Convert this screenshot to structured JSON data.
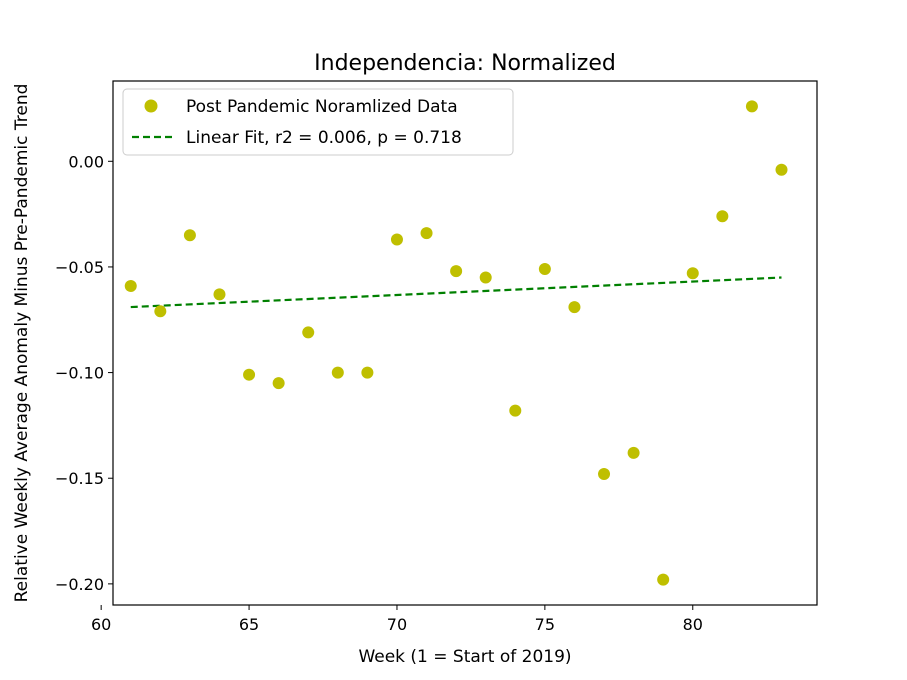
{
  "chart_data": {
    "type": "scatter",
    "title": "Independencia: Normalized",
    "xlabel": "Week (1 = Start of 2019)",
    "ylabel": "Relative Weekly Average Anomaly Minus Pre-Pandemic Trend",
    "xlim": [
      60.4,
      84.2
    ],
    "ylim": [
      -0.21,
      0.038
    ],
    "xticks": [
      60,
      65,
      70,
      75,
      80
    ],
    "xtick_labels": [
      "60",
      "65",
      "70",
      "75",
      "80"
    ],
    "yticks": [
      0.0,
      -0.05,
      -0.1,
      -0.15,
      -0.2
    ],
    "ytick_labels": [
      "0.00",
      "−0.05",
      "−0.10",
      "−0.15",
      "−0.20"
    ],
    "grid": false,
    "legend_position": "upper-left",
    "series": [
      {
        "name": "Post Pandemic Noramlized Data",
        "kind": "points",
        "color": "#bfbf00",
        "x": [
          61,
          62,
          63,
          64,
          65,
          66,
          67,
          68,
          69,
          70,
          71,
          72,
          73,
          74,
          75,
          76,
          77,
          78,
          79,
          80,
          81,
          82,
          83
        ],
        "y": [
          -0.059,
          -0.071,
          -0.035,
          -0.063,
          -0.101,
          -0.105,
          -0.081,
          -0.1,
          -0.1,
          -0.037,
          -0.034,
          -0.052,
          -0.055,
          -0.118,
          -0.051,
          -0.069,
          -0.148,
          -0.138,
          -0.198,
          -0.053,
          -0.026,
          0.026,
          -0.004
        ]
      },
      {
        "name": "Linear Fit, r2 = 0.006, p = 0.718",
        "kind": "dashed-line",
        "color": "#008000",
        "x": [
          61,
          83
        ],
        "y": [
          -0.069,
          -0.055
        ]
      }
    ]
  }
}
